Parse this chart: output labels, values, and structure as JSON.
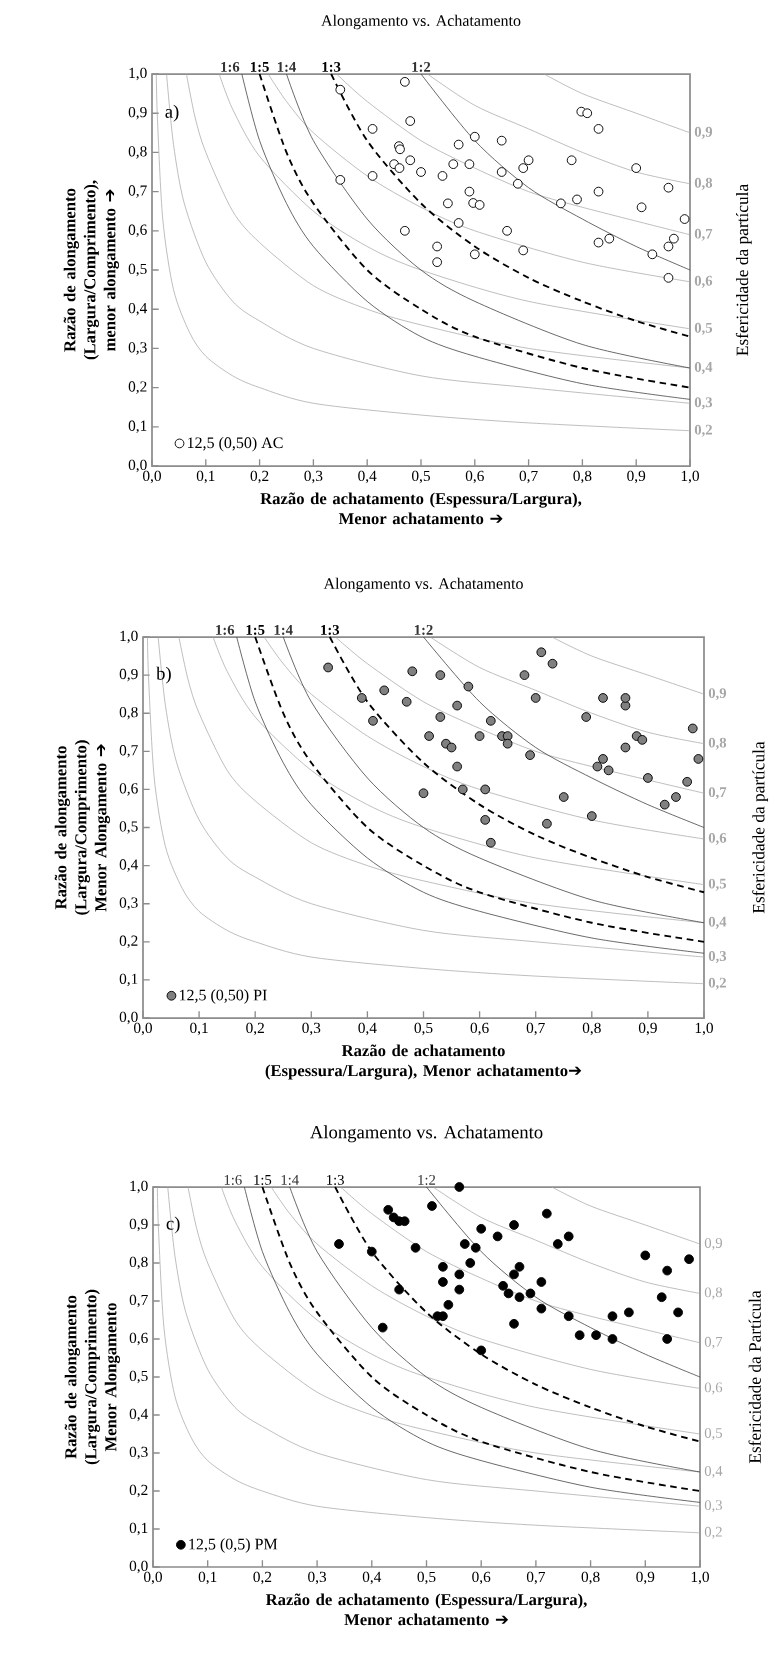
{
  "chart_data": [
    {
      "type": "scatter",
      "title": "Alongamento vs. Achatamento",
      "xlabel": "Razão de achatamento (Espessura/Largura), Menor achatamento ➔",
      "ylabel": "Razão de alongamento (Largura/Comprimento), menor alongamento ➔",
      "y2label": "Esfericidade da partícula",
      "annotations": [
        "a)"
      ],
      "xlim": [
        0,
        1
      ],
      "ylim": [
        0,
        1
      ],
      "xticks": [
        {
          "value": 0,
          "label": "0,0"
        },
        {
          "value": 0.1,
          "label": "0,1"
        },
        {
          "value": 0.2,
          "label": "0,2"
        },
        {
          "value": 0.3,
          "label": "0,3"
        },
        {
          "value": 0.4,
          "label": "0,4"
        },
        {
          "value": 0.5,
          "label": "0,5"
        },
        {
          "value": 0.6,
          "label": "0,6"
        },
        {
          "value": 0.7,
          "label": "0,7"
        },
        {
          "value": 0.8,
          "label": "0,8"
        },
        {
          "value": 0.9,
          "label": "0,9"
        },
        {
          "value": 1,
          "label": "1,0"
        }
      ],
      "yticks": [
        {
          "value": 0,
          "label": "0,0"
        },
        {
          "value": 0.1,
          "label": "0,1"
        },
        {
          "value": 0.2,
          "label": "0,2"
        },
        {
          "value": 0.3,
          "label": "0,3"
        },
        {
          "value": 0.4,
          "label": "0,4"
        },
        {
          "value": 0.5,
          "label": "0,5"
        },
        {
          "value": 0.6,
          "label": "0,6"
        },
        {
          "value": 0.7,
          "label": "0,7"
        },
        {
          "value": 0.8,
          "label": "0,8"
        },
        {
          "value": 0.9,
          "label": "0,9"
        },
        {
          "value": 1,
          "label": "1,0"
        }
      ],
      "legend": "bottom left",
      "series": [
        {
          "name": "12,5 (0,50) AC",
          "color": "#ffffff",
          "marker": "circle",
          "x": [
            0.35,
            0.47,
            0.35,
            0.41,
            0.41,
            0.48,
            0.459,
            0.461,
            0.45,
            0.46,
            0.48,
            0.5,
            0.47,
            0.57,
            0.6,
            0.56,
            0.59,
            0.54,
            0.55,
            0.59,
            0.597,
            0.609,
            0.57,
            0.53,
            0.53,
            0.6,
            0.65,
            0.65,
            0.66,
            0.68,
            0.69,
            0.7,
            0.69,
            0.76,
            0.78,
            0.79,
            0.798,
            0.809,
            0.83,
            0.83,
            0.83,
            0.85,
            0.9,
            0.91,
            0.93,
            0.96,
            0.96,
            0.97,
            0.96,
            0.99
          ],
          "values": [
            0.96,
            0.98,
            0.73,
            0.86,
            0.74,
            0.88,
            0.816,
            0.808,
            0.77,
            0.76,
            0.78,
            0.75,
            0.6,
            0.82,
            0.84,
            0.77,
            0.77,
            0.74,
            0.67,
            0.7,
            0.671,
            0.666,
            0.62,
            0.56,
            0.52,
            0.54,
            0.83,
            0.75,
            0.6,
            0.72,
            0.76,
            0.78,
            0.55,
            0.67,
            0.78,
            0.68,
            0.904,
            0.9,
            0.86,
            0.7,
            0.57,
            0.58,
            0.76,
            0.66,
            0.54,
            0.56,
            0.71,
            0.58,
            0.48,
            0.63
          ]
        },
        {
          "type": "line",
          "name": "0,2",
          "color": "#a6a6a6",
          "x": [
            0.008,
            0.01,
            0.02,
            0.04,
            0.07,
            0.1,
            0.15,
            0.2,
            0.3,
            0.5,
            0.7,
            1
          ],
          "values": [
            1,
            0.89,
            0.63,
            0.45,
            0.34,
            0.28,
            0.23,
            0.2,
            0.16,
            0.13,
            0.11,
            0.09
          ]
        },
        {
          "type": "line",
          "name": "0,3",
          "color": "#a6a6a6",
          "x": [
            0.027,
            0.04,
            0.06,
            0.1,
            0.15,
            0.2,
            0.3,
            0.5,
            0.7,
            1
          ],
          "values": [
            1,
            0.82,
            0.67,
            0.52,
            0.42,
            0.37,
            0.3,
            0.23,
            0.2,
            0.16
          ]
        },
        {
          "type": "line",
          "name": "0,4",
          "color": "#a6a6a6",
          "x": [
            0.064,
            0.08,
            0.1,
            0.15,
            0.2,
            0.3,
            0.4,
            0.5,
            0.7,
            1
          ],
          "values": [
            1,
            0.89,
            0.8,
            0.65,
            0.57,
            0.46,
            0.4,
            0.36,
            0.3,
            0.25
          ]
        },
        {
          "type": "line",
          "name": "0,5",
          "color": "#a6a6a6",
          "x": [
            0.125,
            0.15,
            0.2,
            0.3,
            0.4,
            0.5,
            0.7,
            1
          ],
          "values": [
            1,
            0.91,
            0.79,
            0.65,
            0.56,
            0.5,
            0.42,
            0.35
          ]
        },
        {
          "type": "line",
          "name": "0,6",
          "color": "#a6a6a6",
          "x": [
            0.216,
            0.25,
            0.3,
            0.4,
            0.5,
            0.6,
            0.8,
            1
          ],
          "values": [
            1,
            0.93,
            0.85,
            0.74,
            0.66,
            0.6,
            0.52,
            0.47
          ]
        },
        {
          "type": "line",
          "name": "0,7",
          "color": "#a6a6a6",
          "x": [
            0.343,
            0.4,
            0.5,
            0.6,
            0.7,
            0.8,
            1
          ],
          "values": [
            1,
            0.93,
            0.83,
            0.76,
            0.7,
            0.66,
            0.59
          ]
        },
        {
          "type": "line",
          "name": "0,8",
          "color": "#a6a6a6",
          "x": [
            0.512,
            0.6,
            0.7,
            0.8,
            0.9,
            1
          ],
          "values": [
            1,
            0.92,
            0.86,
            0.8,
            0.75,
            0.72
          ]
        },
        {
          "type": "line",
          "name": "0,9",
          "color": "#a6a6a6",
          "x": [
            0.729,
            0.8,
            0.9,
            1
          ],
          "values": [
            1,
            0.95,
            0.9,
            0.85
          ]
        },
        {
          "type": "line",
          "name": "1:6",
          "color": "#333333",
          "x": [
            0.167,
            0.2,
            0.25,
            0.3,
            0.4,
            0.5,
            0.6,
            0.8,
            1
          ],
          "values": [
            1,
            0.83,
            0.67,
            0.56,
            0.42,
            0.33,
            0.28,
            0.21,
            0.17
          ]
        },
        {
          "type": "line",
          "name": "1:5",
          "color": "#000000",
          "line_style": "dashed",
          "x": [
            0.2,
            0.25,
            0.3,
            0.4,
            0.5,
            0.6,
            0.8,
            1
          ],
          "values": [
            1,
            0.8,
            0.67,
            0.5,
            0.4,
            0.33,
            0.25,
            0.2
          ]
        },
        {
          "type": "line",
          "name": "1:4",
          "color": "#333333",
          "x": [
            0.25,
            0.3,
            0.4,
            0.5,
            0.6,
            0.8,
            1
          ],
          "values": [
            1,
            0.83,
            0.63,
            0.5,
            0.42,
            0.31,
            0.25
          ]
        },
        {
          "type": "line",
          "name": "1:3",
          "color": "#000000",
          "line_style": "dashed",
          "x": [
            0.333,
            0.4,
            0.5,
            0.6,
            0.7,
            0.8,
            0.9,
            1
          ],
          "values": [
            1,
            0.83,
            0.67,
            0.56,
            0.48,
            0.42,
            0.37,
            0.33
          ]
        },
        {
          "type": "line",
          "name": "1:2",
          "color": "#333333",
          "x": [
            0.5,
            0.6,
            0.7,
            0.8,
            0.9,
            1
          ],
          "values": [
            1,
            0.83,
            0.71,
            0.63,
            0.56,
            0.5
          ]
        }
      ]
    },
    {
      "type": "scatter",
      "title": "Alongamento vs. Achatamento",
      "xlabel": "Razão de achatamento (Espessura/Largura), Menor achatamento➔",
      "ylabel": "Razão de alongamento (Largura/Comprimento) Menor Alongamento ➔",
      "y2label": "Esfericidade da partícula",
      "annotations": [
        "b)"
      ],
      "xlim": [
        0,
        1
      ],
      "ylim": [
        0,
        1
      ],
      "xticks": [
        {
          "value": 0,
          "label": "0,0"
        },
        {
          "value": 0.1,
          "label": "0,1"
        },
        {
          "value": 0.2,
          "label": "0,2"
        },
        {
          "value": 0.3,
          "label": "0,3"
        },
        {
          "value": 0.4,
          "label": "0,4"
        },
        {
          "value": 0.5,
          "label": "0,5"
        },
        {
          "value": 0.6,
          "label": "0,6"
        },
        {
          "value": 0.7,
          "label": "0,7"
        },
        {
          "value": 0.8,
          "label": "0,8"
        },
        {
          "value": 0.9,
          "label": "0,9"
        },
        {
          "value": 1,
          "label": "1,0"
        }
      ],
      "yticks": [
        {
          "value": 0,
          "label": "0,0"
        },
        {
          "value": 0.1,
          "label": "0,1"
        },
        {
          "value": 0.2,
          "label": "0,2"
        },
        {
          "value": 0.3,
          "label": "0,3"
        },
        {
          "value": 0.4,
          "label": "0,4"
        },
        {
          "value": 0.5,
          "label": "0,5"
        },
        {
          "value": 0.6,
          "label": "0,6"
        },
        {
          "value": 0.7,
          "label": "0,7"
        },
        {
          "value": 0.8,
          "label": "0,8"
        },
        {
          "value": 0.9,
          "label": "0,9"
        },
        {
          "value": 1,
          "label": "1,0"
        }
      ],
      "legend": "bottom left",
      "series": [
        {
          "name": "12,5 (0,50) PI",
          "color": "#808080",
          "marker": "circle",
          "x": [
            0.33,
            0.39,
            0.41,
            0.43,
            0.47,
            0.48,
            0.51,
            0.53,
            0.53,
            0.5,
            0.54,
            0.55,
            0.56,
            0.58,
            0.56,
            0.57,
            0.6,
            0.61,
            0.61,
            0.62,
            0.62,
            0.64,
            0.65,
            0.65,
            0.68,
            0.69,
            0.7,
            0.71,
            0.72,
            0.73,
            0.75,
            0.79,
            0.8,
            0.82,
            0.82,
            0.81,
            0.83,
            0.86,
            0.86,
            0.86,
            0.88,
            0.89,
            0.9,
            0.93,
            0.95,
            0.97,
            0.98,
            0.99
          ],
          "values": [
            0.92,
            0.84,
            0.78,
            0.86,
            0.83,
            0.91,
            0.74,
            0.9,
            0.79,
            0.59,
            0.72,
            0.71,
            0.82,
            0.87,
            0.66,
            0.6,
            0.74,
            0.6,
            0.52,
            0.78,
            0.46,
            0.74,
            0.74,
            0.72,
            0.9,
            0.69,
            0.84,
            0.96,
            0.51,
            0.93,
            0.58,
            0.79,
            0.53,
            0.84,
            0.68,
            0.66,
            0.65,
            0.82,
            0.84,
            0.71,
            0.74,
            0.73,
            0.63,
            0.56,
            0.58,
            0.62,
            0.76,
            0.68
          ]
        },
        {
          "type": "line",
          "name": "0,2",
          "color": "#a6a6a6",
          "x": [
            0.008,
            0.01,
            0.02,
            0.04,
            0.07,
            0.1,
            0.15,
            0.2,
            0.3,
            0.5,
            0.7,
            1
          ],
          "values": [
            1,
            0.89,
            0.63,
            0.45,
            0.34,
            0.28,
            0.23,
            0.2,
            0.16,
            0.13,
            0.11,
            0.09
          ]
        },
        {
          "type": "line",
          "name": "0,3",
          "color": "#a6a6a6",
          "x": [
            0.027,
            0.04,
            0.06,
            0.1,
            0.15,
            0.2,
            0.3,
            0.5,
            0.7,
            1
          ],
          "values": [
            1,
            0.82,
            0.67,
            0.52,
            0.42,
            0.37,
            0.3,
            0.23,
            0.2,
            0.16
          ]
        },
        {
          "type": "line",
          "name": "0,4",
          "color": "#a6a6a6",
          "x": [
            0.064,
            0.08,
            0.1,
            0.15,
            0.2,
            0.3,
            0.4,
            0.5,
            0.7,
            1
          ],
          "values": [
            1,
            0.89,
            0.8,
            0.65,
            0.57,
            0.46,
            0.4,
            0.36,
            0.3,
            0.25
          ]
        },
        {
          "type": "line",
          "name": "0,5",
          "color": "#a6a6a6",
          "x": [
            0.125,
            0.15,
            0.2,
            0.3,
            0.4,
            0.5,
            0.7,
            1
          ],
          "values": [
            1,
            0.91,
            0.79,
            0.65,
            0.56,
            0.5,
            0.42,
            0.35
          ]
        },
        {
          "type": "line",
          "name": "0,6",
          "color": "#a6a6a6",
          "x": [
            0.216,
            0.25,
            0.3,
            0.4,
            0.5,
            0.6,
            0.8,
            1
          ],
          "values": [
            1,
            0.93,
            0.85,
            0.74,
            0.66,
            0.6,
            0.52,
            0.47
          ]
        },
        {
          "type": "line",
          "name": "0,7",
          "color": "#a6a6a6",
          "x": [
            0.343,
            0.4,
            0.5,
            0.6,
            0.7,
            0.8,
            1
          ],
          "values": [
            1,
            0.93,
            0.83,
            0.76,
            0.7,
            0.66,
            0.59
          ]
        },
        {
          "type": "line",
          "name": "0,8",
          "color": "#a6a6a6",
          "x": [
            0.512,
            0.6,
            0.7,
            0.8,
            0.9,
            1
          ],
          "values": [
            1,
            0.92,
            0.86,
            0.8,
            0.75,
            0.72
          ]
        },
        {
          "type": "line",
          "name": "0,9",
          "color": "#a6a6a6",
          "x": [
            0.729,
            0.8,
            0.9,
            1
          ],
          "values": [
            1,
            0.95,
            0.9,
            0.85
          ]
        },
        {
          "type": "line",
          "name": "1:6",
          "color": "#333333",
          "x": [
            0.167,
            0.2,
            0.25,
            0.3,
            0.4,
            0.5,
            0.6,
            0.8,
            1
          ],
          "values": [
            1,
            0.83,
            0.67,
            0.56,
            0.42,
            0.33,
            0.28,
            0.21,
            0.17
          ]
        },
        {
          "type": "line",
          "name": "1:5",
          "color": "#000000",
          "line_style": "dashed",
          "x": [
            0.2,
            0.25,
            0.3,
            0.4,
            0.5,
            0.6,
            0.8,
            1
          ],
          "values": [
            1,
            0.8,
            0.67,
            0.5,
            0.4,
            0.33,
            0.25,
            0.2
          ]
        },
        {
          "type": "line",
          "name": "1:4",
          "color": "#333333",
          "x": [
            0.25,
            0.3,
            0.4,
            0.5,
            0.6,
            0.8,
            1
          ],
          "values": [
            1,
            0.83,
            0.63,
            0.5,
            0.42,
            0.31,
            0.25
          ]
        },
        {
          "type": "line",
          "name": "1:3",
          "color": "#000000",
          "line_style": "dashed",
          "x": [
            0.333,
            0.4,
            0.5,
            0.6,
            0.7,
            0.8,
            0.9,
            1
          ],
          "values": [
            1,
            0.83,
            0.67,
            0.56,
            0.48,
            0.42,
            0.37,
            0.33
          ]
        },
        {
          "type": "line",
          "name": "1:2",
          "color": "#333333",
          "x": [
            0.5,
            0.6,
            0.7,
            0.8,
            0.9,
            1
          ],
          "values": [
            1,
            0.83,
            0.71,
            0.63,
            0.56,
            0.5
          ]
        }
      ]
    },
    {
      "type": "scatter",
      "title": "Alongamento vs. Achatamento",
      "xlabel": "Razão de achatamento (Espessura/Largura), Menor achatamento ➔",
      "ylabel": "Razão de alongamento (Largura/Comprimento) Menor Alongamento",
      "y2label": "Esfericidade da Partícula",
      "annotations": [
        "c)"
      ],
      "xlim": [
        0,
        1
      ],
      "ylim": [
        0,
        1
      ],
      "xticks": [
        {
          "value": 0,
          "label": "0,0"
        },
        {
          "value": 0.1,
          "label": "0,1"
        },
        {
          "value": 0.2,
          "label": "0,2"
        },
        {
          "value": 0.3,
          "label": "0,3"
        },
        {
          "value": 0.4,
          "label": "0,4"
        },
        {
          "value": 0.5,
          "label": "0,5"
        },
        {
          "value": 0.6,
          "label": "0,6"
        },
        {
          "value": 0.7,
          "label": "0,7"
        },
        {
          "value": 0.8,
          "label": "0,8"
        },
        {
          "value": 0.9,
          "label": "0,9"
        },
        {
          "value": 1,
          "label": "1,0"
        }
      ],
      "yticks": [
        {
          "value": 0,
          "label": "0,0"
        },
        {
          "value": 0.1,
          "label": "0,1"
        },
        {
          "value": 0.2,
          "label": "0,2"
        },
        {
          "value": 0.3,
          "label": "0,3"
        },
        {
          "value": 0.4,
          "label": "0,4"
        },
        {
          "value": 0.5,
          "label": "0,5"
        },
        {
          "value": 0.6,
          "label": "0,6"
        },
        {
          "value": 0.7,
          "label": "0,7"
        },
        {
          "value": 0.8,
          "label": "0,8"
        },
        {
          "value": 0.9,
          "label": "0,9"
        },
        {
          "value": 1,
          "label": "1,0"
        }
      ],
      "legend": "bottom left",
      "series": [
        {
          "name": "12,5 (0,5) PM",
          "color": "#000000",
          "marker": "circle",
          "x": [
            0.56,
            0.34,
            0.43,
            0.44,
            0.45,
            0.46,
            0.4,
            0.42,
            0.45,
            0.48,
            0.51,
            0.53,
            0.53,
            0.54,
            0.52,
            0.53,
            0.56,
            0.57,
            0.56,
            0.58,
            0.59,
            0.6,
            0.6,
            0.63,
            0.64,
            0.66,
            0.65,
            0.66,
            0.66,
            0.67,
            0.67,
            0.69,
            0.71,
            0.71,
            0.72,
            0.74,
            0.76,
            0.76,
            0.78,
            0.81,
            0.84,
            0.84,
            0.87,
            0.9,
            0.93,
            0.94,
            0.94,
            0.96,
            0.98
          ],
          "values": [
            1,
            0.85,
            0.94,
            0.92,
            0.91,
            0.91,
            0.83,
            0.63,
            0.73,
            0.84,
            0.95,
            0.79,
            0.75,
            0.69,
            0.66,
            0.66,
            0.77,
            0.85,
            0.73,
            0.8,
            0.84,
            0.89,
            0.57,
            0.87,
            0.74,
            0.77,
            0.72,
            0.64,
            0.9,
            0.71,
            0.79,
            0.72,
            0.68,
            0.75,
            0.93,
            0.85,
            0.66,
            0.87,
            0.61,
            0.61,
            0.66,
            0.6,
            0.67,
            0.82,
            0.71,
            0.78,
            0.6,
            0.67,
            0.81
          ]
        },
        {
          "type": "line",
          "name": "0,2",
          "color": "#a6a6a6",
          "x": [
            0.008,
            0.01,
            0.02,
            0.04,
            0.07,
            0.1,
            0.15,
            0.2,
            0.3,
            0.5,
            0.7,
            1
          ],
          "values": [
            1,
            0.89,
            0.63,
            0.45,
            0.34,
            0.28,
            0.23,
            0.2,
            0.16,
            0.13,
            0.11,
            0.09
          ]
        },
        {
          "type": "line",
          "name": "0,3",
          "color": "#a6a6a6",
          "x": [
            0.027,
            0.04,
            0.06,
            0.1,
            0.15,
            0.2,
            0.3,
            0.5,
            0.7,
            1
          ],
          "values": [
            1,
            0.82,
            0.67,
            0.52,
            0.42,
            0.37,
            0.3,
            0.23,
            0.2,
            0.16
          ]
        },
        {
          "type": "line",
          "name": "0,4",
          "color": "#a6a6a6",
          "x": [
            0.064,
            0.08,
            0.1,
            0.15,
            0.2,
            0.3,
            0.4,
            0.5,
            0.7,
            1
          ],
          "values": [
            1,
            0.89,
            0.8,
            0.65,
            0.57,
            0.46,
            0.4,
            0.36,
            0.3,
            0.25
          ]
        },
        {
          "type": "line",
          "name": "0,5",
          "color": "#a6a6a6",
          "x": [
            0.125,
            0.15,
            0.2,
            0.3,
            0.4,
            0.5,
            0.7,
            1
          ],
          "values": [
            1,
            0.91,
            0.79,
            0.65,
            0.56,
            0.5,
            0.42,
            0.35
          ]
        },
        {
          "type": "line",
          "name": "0,6",
          "color": "#a6a6a6",
          "x": [
            0.216,
            0.25,
            0.3,
            0.4,
            0.5,
            0.6,
            0.8,
            1
          ],
          "values": [
            1,
            0.93,
            0.85,
            0.74,
            0.66,
            0.6,
            0.52,
            0.47
          ]
        },
        {
          "type": "line",
          "name": "0,7",
          "color": "#a6a6a6",
          "x": [
            0.343,
            0.4,
            0.5,
            0.6,
            0.7,
            0.8,
            1
          ],
          "values": [
            1,
            0.93,
            0.83,
            0.76,
            0.7,
            0.66,
            0.59
          ]
        },
        {
          "type": "line",
          "name": "0,8",
          "color": "#a6a6a6",
          "x": [
            0.512,
            0.6,
            0.7,
            0.8,
            0.9,
            1
          ],
          "values": [
            1,
            0.92,
            0.86,
            0.8,
            0.75,
            0.72
          ]
        },
        {
          "type": "line",
          "name": "0,9",
          "color": "#a6a6a6",
          "x": [
            0.729,
            0.8,
            0.9,
            1
          ],
          "values": [
            1,
            0.95,
            0.9,
            0.85
          ]
        },
        {
          "type": "line",
          "name": "1:6",
          "color": "#333333",
          "x": [
            0.167,
            0.2,
            0.25,
            0.3,
            0.4,
            0.5,
            0.6,
            0.8,
            1
          ],
          "values": [
            1,
            0.83,
            0.67,
            0.56,
            0.42,
            0.33,
            0.28,
            0.21,
            0.17
          ]
        },
        {
          "type": "line",
          "name": "1:5",
          "color": "#000000",
          "line_style": "dashed",
          "x": [
            0.2,
            0.25,
            0.3,
            0.4,
            0.5,
            0.6,
            0.8,
            1
          ],
          "values": [
            1,
            0.8,
            0.67,
            0.5,
            0.4,
            0.33,
            0.25,
            0.2
          ]
        },
        {
          "type": "line",
          "name": "1:4",
          "color": "#333333",
          "x": [
            0.25,
            0.3,
            0.4,
            0.5,
            0.6,
            0.8,
            1
          ],
          "values": [
            1,
            0.83,
            0.63,
            0.5,
            0.42,
            0.31,
            0.25
          ]
        },
        {
          "type": "line",
          "name": "1:3",
          "color": "#000000",
          "line_style": "dashed",
          "x": [
            0.333,
            0.4,
            0.5,
            0.6,
            0.7,
            0.8,
            0.9,
            1
          ],
          "values": [
            1,
            0.83,
            0.67,
            0.56,
            0.48,
            0.42,
            0.37,
            0.33
          ]
        },
        {
          "type": "line",
          "name": "1:2",
          "color": "#333333",
          "x": [
            0.5,
            0.6,
            0.7,
            0.8,
            0.9,
            1
          ],
          "values": [
            1,
            0.83,
            0.71,
            0.63,
            0.56,
            0.5
          ]
        }
      ]
    }
  ]
}
